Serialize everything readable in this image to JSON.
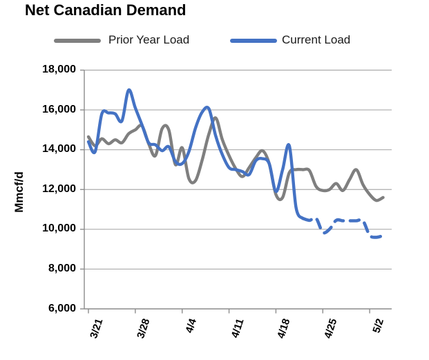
{
  "title": "Net Canadian Demand",
  "y_axis": {
    "label": "Mmcf/d",
    "tick_labels": [
      "18,000",
      "16,000",
      "14,000",
      "12,000",
      "10,000",
      "8,000",
      "6,000"
    ],
    "min": 6000,
    "max": 18000,
    "step": 2000
  },
  "x_axis": {
    "tick_labels": [
      "3/21",
      "3/28",
      "4/4",
      "4/11",
      "4/18",
      "4/25",
      "5/2"
    ]
  },
  "colors": {
    "prior_year": "#7F7F7F",
    "current": "#4472C4",
    "gridline": "#ABABAB",
    "axis": "#8C8C8C",
    "text": "#000000"
  },
  "chart_data": {
    "type": "line",
    "title": "Net Canadian Demand",
    "ylabel": "Mmcf/d",
    "ylim": [
      6000,
      18000
    ],
    "grid": "horizontal",
    "legend_position": "top",
    "x": [
      "3/21",
      "3/22",
      "3/23",
      "3/24",
      "3/25",
      "3/26",
      "3/27",
      "3/28",
      "3/29",
      "3/30",
      "3/31",
      "4/1",
      "4/2",
      "4/3",
      "4/4",
      "4/5",
      "4/6",
      "4/7",
      "4/8",
      "4/9",
      "4/10",
      "4/11",
      "4/12",
      "4/13",
      "4/14",
      "4/15",
      "4/16",
      "4/17",
      "4/18",
      "4/19",
      "4/20",
      "4/21",
      "4/22",
      "4/23",
      "4/24",
      "4/25",
      "4/26",
      "4/27",
      "4/28",
      "4/29",
      "4/30",
      "5/1",
      "5/2",
      "5/3",
      "5/4"
    ],
    "series": [
      {
        "name": "Prior Year Load",
        "color": "#7F7F7F",
        "style": "solid",
        "values": [
          14650,
          14200,
          14550,
          14300,
          14500,
          14350,
          14800,
          15000,
          15200,
          14300,
          13700,
          15050,
          15000,
          13250,
          14100,
          12550,
          12450,
          13500,
          14800,
          15600,
          14500,
          13700,
          13050,
          12650,
          13100,
          13600,
          13950,
          13300,
          11750,
          11600,
          12850,
          13000,
          13000,
          12950,
          12150,
          11950,
          12000,
          12300,
          11950,
          12500,
          13000,
          12250,
          11750,
          11450,
          11600
        ]
      },
      {
        "name": "Current Load",
        "color": "#4472C4",
        "style": "solid_then_dashed",
        "dash_start_index": 32,
        "values": [
          14400,
          13900,
          15800,
          15850,
          15800,
          15450,
          17000,
          16100,
          15250,
          14350,
          14250,
          13950,
          14150,
          13400,
          13300,
          13900,
          15100,
          15900,
          16050,
          14700,
          13750,
          13100,
          13000,
          12900,
          12750,
          13450,
          13550,
          13300,
          11900,
          13000,
          14200,
          11100,
          10550,
          10450,
          10550,
          9850,
          10000,
          10450,
          10430,
          10430,
          10430,
          10430,
          9700,
          9600,
          9680
        ]
      }
    ]
  }
}
